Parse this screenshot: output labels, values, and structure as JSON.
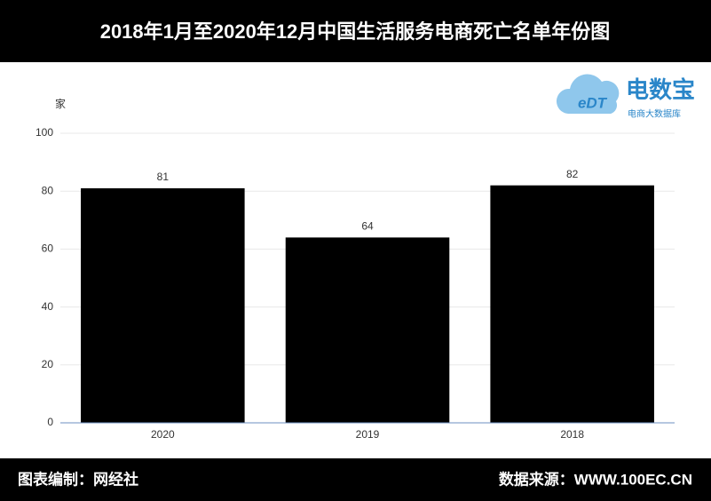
{
  "header": {
    "title": "2018年1月至2020年12月中国生活服务电商死亡名单年份图"
  },
  "logo": {
    "mark": "eDT",
    "name": "电数宝",
    "tagline": "电商大数据库"
  },
  "chart_data": {
    "type": "bar",
    "y_label": "家",
    "categories": [
      "2020",
      "2019",
      "2018"
    ],
    "values": [
      81,
      64,
      82
    ],
    "color": "#000000",
    "ylim": [
      0,
      100
    ],
    "yticks": [
      0,
      20,
      40,
      60,
      80,
      100
    ],
    "grid": true
  },
  "footer": {
    "left": "图表编制：网经社",
    "right": "数据来源：WWW.100EC.CN"
  }
}
